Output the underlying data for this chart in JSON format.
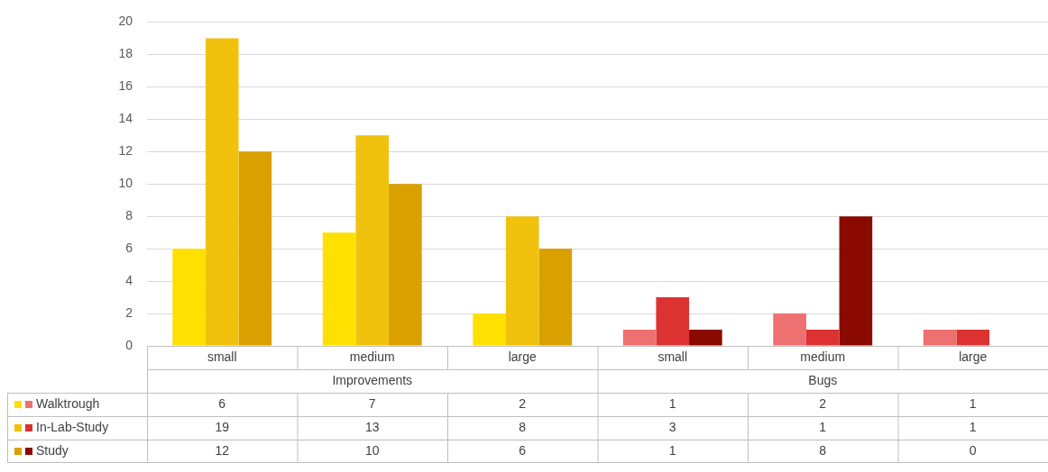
{
  "chart_data": {
    "type": "bar",
    "categories": [
      "small",
      "medium",
      "large",
      "small",
      "medium",
      "large"
    ],
    "annotations": [
      "Improvements",
      "Bugs"
    ],
    "series": [
      {
        "name": "Walktrough",
        "colors": [
          "#ffe000",
          "#ffe000",
          "#ffe000",
          "#ee7070",
          "#ee7070",
          "#ee7070"
        ],
        "values": [
          6,
          7,
          2,
          1,
          2,
          1
        ]
      },
      {
        "name": "In-Lab-Study",
        "colors": [
          "#f0c20e",
          "#f0c20e",
          "#f0c20e",
          "#dc3232",
          "#dc3232",
          "#dc3232"
        ],
        "values": [
          19,
          13,
          8,
          3,
          1,
          1
        ]
      },
      {
        "name": "Study",
        "colors": [
          "#d9a000",
          "#d9a000",
          "#d9a000",
          "#8b0a00",
          "#8b0a00",
          "#8b0a00"
        ],
        "values": [
          12,
          10,
          6,
          1,
          8,
          0
        ]
      }
    ],
    "ylim": [
      0,
      20
    ],
    "yticks": [
      0,
      2,
      4,
      6,
      8,
      10,
      12,
      14,
      16,
      18,
      20
    ],
    "grid": "y",
    "legend": "bottom left",
    "data_labels": true
  }
}
